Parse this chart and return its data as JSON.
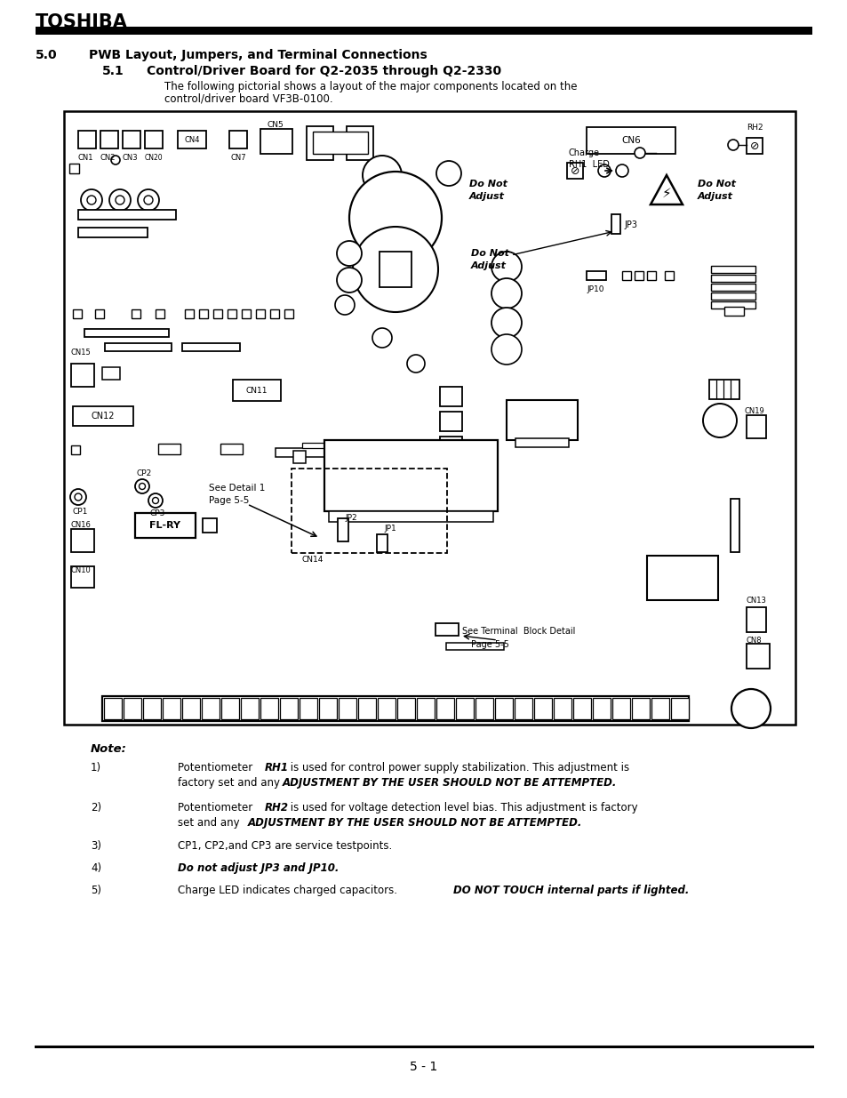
{
  "title": "TOSHIBA",
  "section_header": "5.0    PWB Layout, Jumpers, and Terminal Connections",
  "subsection_header": "5.1    Control/Driver Board for Q2-2035 through Q2-2330",
  "desc1": "The following pictorial shows a layout of the major components located on the",
  "desc2": "control/driver board VF3B-0100.",
  "footer": "5 - 1",
  "bg_color": "#ffffff"
}
